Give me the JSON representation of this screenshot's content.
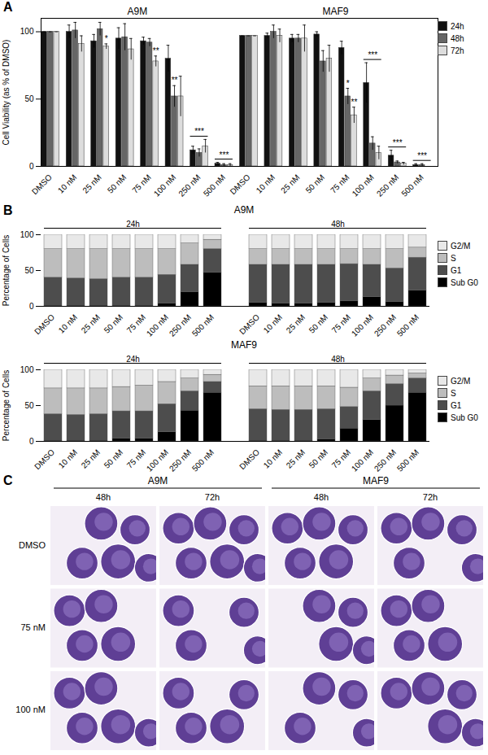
{
  "chart_data": [
    {
      "panel_label": "A",
      "type": "bar",
      "y_label": "Cell Viability (as % of DMSO)",
      "groups": [
        "A9M",
        "MAF9"
      ],
      "categories": [
        "DMSO",
        "10 nM",
        "25 nM",
        "50 nM",
        "75 nM",
        "100 nM",
        "250 nM",
        "500 nM"
      ],
      "ylim": [
        0,
        110
      ],
      "yticks": [
        0,
        50,
        100
      ],
      "legend": "top-right",
      "series": [
        {
          "name": "24h",
          "color": "#111111",
          "values": [
            [
              100,
              100,
              93,
              95,
              93,
              80,
              12,
              2
            ],
            [
              97,
              97,
              95,
              98,
              88,
              62,
              8,
              1
            ]
          ],
          "errors": [
            [
              0,
              5,
              5,
              8,
              3,
              10,
              3,
              1
            ],
            [
              0,
              2,
              3,
              2,
              5,
              15,
              4,
              1
            ]
          ]
        },
        {
          "name": "48h",
          "color": "#666666",
          "values": [
            [
              100,
              101,
              102,
              96,
              92,
              52,
              10,
              1
            ],
            [
              97,
              100,
              95,
              78,
              52,
              17,
              3,
              1
            ]
          ],
          "errors": [
            [
              0,
              6,
              5,
              10,
              3,
              8,
              3,
              1
            ],
            [
              0,
              5,
              3,
              8,
              6,
              5,
              1,
              1
            ]
          ]
        },
        {
          "name": "72h",
          "color": "#dddddd",
          "values": [
            [
              100,
              91,
              89,
              87,
              78,
              52,
              15,
              1
            ],
            [
              97,
              97,
              95,
              80,
              38,
              10,
              2,
              0
            ]
          ],
          "errors": [
            [
              0,
              6,
              2,
              8,
              4,
              15,
              5,
              1
            ],
            [
              0,
              5,
              10,
              10,
              6,
              5,
              1,
              0
            ]
          ]
        }
      ],
      "annotations": [
        {
          "group": "A9M",
          "category": "25 nM",
          "series": "72h",
          "text": "*"
        },
        {
          "group": "A9M",
          "category": "75 nM",
          "series": "72h",
          "text": "**"
        },
        {
          "group": "A9M",
          "category": "100 nM",
          "series": "48h",
          "text": "**"
        },
        {
          "group": "A9M",
          "category": "250 nM",
          "text": "***"
        },
        {
          "group": "A9M",
          "category": "500 nM",
          "text": "***"
        },
        {
          "group": "MAF9",
          "category": "75 nM",
          "series": "48h",
          "text": "*"
        },
        {
          "group": "MAF9",
          "category": "75 nM",
          "series": "72h",
          "text": "**"
        },
        {
          "group": "MAF9",
          "category": "100 nM",
          "text": "***"
        },
        {
          "group": "MAF9",
          "category": "250 nM",
          "text": "***"
        },
        {
          "group": "MAF9",
          "category": "500 nM",
          "text": "***"
        }
      ]
    },
    {
      "panel_label": "B",
      "type": "bar",
      "stacked": true,
      "title": "A9M",
      "y_label": "Percentage of Cells",
      "groups": [
        "24h",
        "48h"
      ],
      "categories": [
        "DMSO",
        "10 nM",
        "25 nM",
        "50 nM",
        "75 nM",
        "100 nM",
        "250 nM",
        "500 nM"
      ],
      "ylim": [
        0,
        100
      ],
      "yticks": [
        0,
        50,
        100
      ],
      "legend": "right",
      "series": [
        {
          "name": "Sub G0",
          "color": "#000000",
          "values": [
            [
              1,
              1,
              1,
              1,
              1,
              4,
              20,
              47
            ],
            [
              5,
              4,
              4,
              5,
              7,
              13,
              6,
              22
            ]
          ]
        },
        {
          "name": "G1",
          "color": "#4d4d4d",
          "values": [
            [
              39,
              38,
              37,
              39,
              39,
              40,
              38,
              33
            ],
            [
              53,
              54,
              54,
              53,
              52,
              45,
              47,
              46
            ]
          ]
        },
        {
          "name": "S",
          "color": "#bdbdbd",
          "values": [
            [
              40,
              41,
              42,
              40,
              40,
              36,
              30,
              13
            ],
            [
              22,
              22,
              22,
              22,
              21,
              22,
              27,
              14
            ]
          ]
        },
        {
          "name": "G2/M",
          "color": "#e8e8e8",
          "values": [
            [
              20,
              20,
              20,
              20,
              20,
              20,
              12,
              7
            ],
            [
              20,
              20,
              20,
              20,
              20,
              20,
              20,
              18
            ]
          ]
        }
      ]
    },
    {
      "type": "bar",
      "stacked": true,
      "title": "MAF9",
      "y_label": "Percentage of Cells",
      "groups": [
        "24h",
        "48h"
      ],
      "categories": [
        "DMSO",
        "10 nM",
        "25 nM",
        "50 nM",
        "75 nM",
        "100 nM",
        "250 nM",
        "500 nM"
      ],
      "ylim": [
        0,
        100
      ],
      "yticks": [
        0,
        50,
        100
      ],
      "legend": "right",
      "series": [
        {
          "name": "Sub G0",
          "color": "#000000",
          "values": [
            [
              1,
              1,
              1,
              4,
              4,
              13,
              43,
              68
            ],
            [
              1,
              1,
              1,
              3,
              18,
              30,
              50,
              68
            ]
          ]
        },
        {
          "name": "G1",
          "color": "#4d4d4d",
          "values": [
            [
              37,
              36,
              37,
              38,
              38,
              39,
              27,
              15
            ],
            [
              44,
              43,
              43,
              42,
              30,
              40,
              30,
              20
            ]
          ]
        },
        {
          "name": "S",
          "color": "#bdbdbd",
          "values": [
            [
              36,
              37,
              36,
              34,
              36,
              31,
              18,
              10
            ],
            [
              32,
              33,
              33,
              32,
              27,
              18,
              12,
              7
            ]
          ]
        },
        {
          "name": "G2/M",
          "color": "#e8e8e8",
          "values": [
            [
              26,
              26,
              26,
              24,
              22,
              17,
              12,
              7
            ],
            [
              23,
              23,
              23,
              23,
              25,
              12,
              8,
              5
            ]
          ]
        }
      ]
    }
  ],
  "figure_c": {
    "panel_label": "C",
    "groups": [
      "A9M",
      "MAF9"
    ],
    "times": [
      "48h",
      "72h"
    ],
    "rows": [
      "DMSO",
      "75 nM",
      "100 nM"
    ]
  }
}
